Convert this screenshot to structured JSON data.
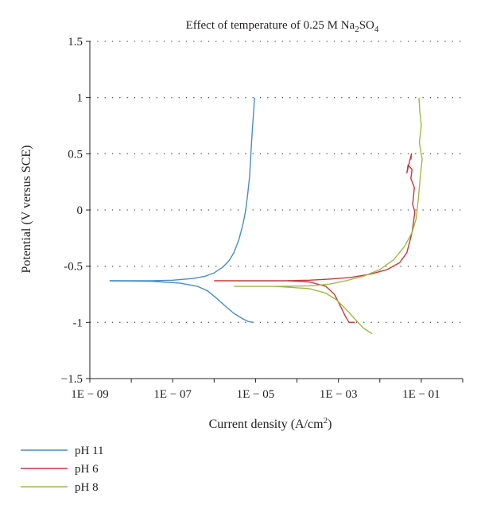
{
  "chart_data": {
    "type": "line",
    "title": {
      "prefix": "Effect of temperature of 0.25 M Na",
      "sub1": "2",
      "middle": "SO",
      "sub2": "4"
    },
    "xlabel": {
      "prefix": "Current density (A/cm",
      "sup": "2",
      "suffix": ")"
    },
    "ylabel": "Potential (V versus SCE)",
    "x_scale": "log",
    "xlim": [
      1e-09,
      1
    ],
    "ylim": [
      -1.5,
      1.5
    ],
    "x_ticks": [
      {
        "value": 1e-09,
        "label": "1E − 09"
      },
      {
        "value": 1e-07,
        "label": "1E − 07"
      },
      {
        "value": 1e-05,
        "label": "1E − 05"
      },
      {
        "value": 0.001,
        "label": "1E − 03"
      },
      {
        "value": 0.1,
        "label": "1E − 01"
      }
    ],
    "y_ticks": [
      {
        "value": 1.5,
        "label": "1.5"
      },
      {
        "value": 1,
        "label": "1"
      },
      {
        "value": 0.5,
        "label": "0.5"
      },
      {
        "value": 0,
        "label": "0"
      },
      {
        "value": -0.5,
        "label": "-0.5"
      },
      {
        "value": -1,
        "label": "-1"
      },
      {
        "value": -1.5,
        "label": "−1.5"
      }
    ],
    "grid": "horizontal dotted",
    "legend_position": "bottom-left",
    "series": [
      {
        "name": "pH 11",
        "color": "#4a8cc4",
        "points": [
          [
            3e-09,
            -0.63
          ],
          [
            1e-08,
            -0.63
          ],
          [
            3e-08,
            -0.63
          ],
          [
            1e-07,
            -0.625
          ],
          [
            3e-07,
            -0.61
          ],
          [
            6e-07,
            -0.59
          ],
          [
            1e-06,
            -0.56
          ],
          [
            1.6e-06,
            -0.51
          ],
          [
            2.3e-06,
            -0.45
          ],
          [
            3e-06,
            -0.38
          ],
          [
            4e-06,
            -0.26
          ],
          [
            5e-06,
            -0.12
          ],
          [
            5.8e-06,
            0.0
          ],
          [
            6.5e-06,
            0.15
          ],
          [
            7.2e-06,
            0.3
          ],
          [
            7.6e-06,
            0.45
          ],
          [
            8e-06,
            0.6
          ],
          [
            8.5e-06,
            0.75
          ],
          [
            9e-06,
            0.88
          ],
          [
            9.4e-06,
            0.98
          ],
          [
            9.6e-06,
            1.0
          ]
        ],
        "cathodic_points": [
          [
            3e-09,
            -0.63
          ],
          [
            3e-08,
            -0.635
          ],
          [
            1.5e-07,
            -0.65
          ],
          [
            4e-07,
            -0.68
          ],
          [
            7e-07,
            -0.72
          ],
          [
            1.1e-06,
            -0.78
          ],
          [
            1.8e-06,
            -0.85
          ],
          [
            3e-06,
            -0.92
          ],
          [
            5e-06,
            -0.97
          ],
          [
            7e-06,
            -0.995
          ],
          [
            9e-06,
            -1.0
          ]
        ]
      },
      {
        "name": "pH 6",
        "color": "#c8373f",
        "points": [
          [
            1e-06,
            -0.63
          ],
          [
            1e-05,
            -0.63
          ],
          [
            6e-05,
            -0.63
          ],
          [
            0.0002,
            -0.625
          ],
          [
            0.0006,
            -0.615
          ],
          [
            0.002,
            -0.6
          ],
          [
            0.006,
            -0.57
          ],
          [
            0.015,
            -0.53
          ],
          [
            0.03,
            -0.47
          ],
          [
            0.045,
            -0.38
          ],
          [
            0.06,
            -0.2
          ],
          [
            0.07,
            -0.02
          ],
          [
            0.062,
            0.05
          ],
          [
            0.068,
            0.2
          ],
          [
            0.056,
            0.28
          ],
          [
            0.06,
            0.36
          ],
          [
            0.048,
            0.4
          ],
          [
            0.045,
            0.33
          ],
          [
            0.052,
            0.43
          ],
          [
            0.058,
            0.5
          ],
          [
            0.056,
            0.45
          ]
        ],
        "cathodic_points": [
          [
            6e-05,
            -0.63
          ],
          [
            0.0002,
            -0.64
          ],
          [
            0.0005,
            -0.68
          ],
          [
            0.0008,
            -0.75
          ],
          [
            0.0011,
            -0.85
          ],
          [
            0.0015,
            -0.95
          ],
          [
            0.0018,
            -1.0
          ],
          [
            0.0025,
            -1.0
          ]
        ]
      },
      {
        "name": "pH 8",
        "color": "#9bbc44",
        "points": [
          [
            3e-06,
            -0.68
          ],
          [
            3e-05,
            -0.68
          ],
          [
            0.0002,
            -0.675
          ],
          [
            0.0006,
            -0.66
          ],
          [
            0.0015,
            -0.63
          ],
          [
            0.004,
            -0.59
          ],
          [
            0.01,
            -0.53
          ],
          [
            0.022,
            -0.44
          ],
          [
            0.04,
            -0.32
          ],
          [
            0.06,
            -0.2
          ],
          [
            0.075,
            -0.08
          ],
          [
            0.085,
            0.1
          ],
          [
            0.095,
            0.3
          ],
          [
            0.105,
            0.45
          ],
          [
            0.09,
            0.6
          ],
          [
            0.1,
            0.75
          ],
          [
            0.092,
            0.88
          ],
          [
            0.088,
            1.0
          ]
        ],
        "cathodic_points": [
          [
            3e-05,
            -0.68
          ],
          [
            0.0002,
            -0.7
          ],
          [
            0.0005,
            -0.74
          ],
          [
            0.0009,
            -0.8
          ],
          [
            0.0015,
            -0.88
          ],
          [
            0.0025,
            -0.97
          ],
          [
            0.004,
            -1.05
          ],
          [
            0.0065,
            -1.1
          ]
        ]
      }
    ]
  }
}
